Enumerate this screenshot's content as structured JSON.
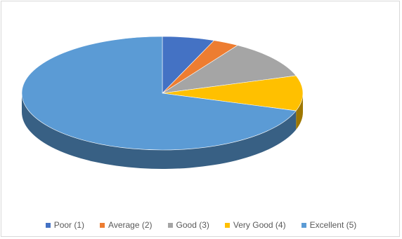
{
  "chart_data": {
    "type": "pie",
    "style": "3d",
    "categories": [
      "Poor (1)",
      "Average (2)",
      "Good (3)",
      "Very Good (4)",
      "Excellent (5)"
    ],
    "values": [
      6,
      3,
      11,
      10,
      70
    ],
    "colors": [
      "#4472C4",
      "#ED7D31",
      "#A5A5A5",
      "#FFC000",
      "#5B9BD5"
    ],
    "legend_position": "bottom",
    "title": ""
  }
}
